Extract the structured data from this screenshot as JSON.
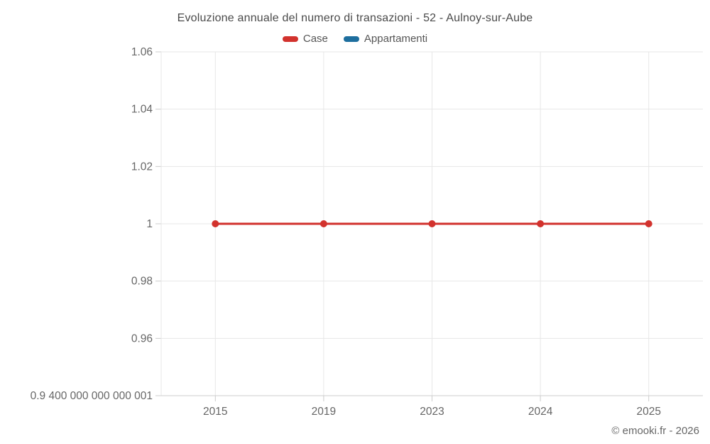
{
  "chart_data": {
    "type": "line",
    "title": "Evoluzione annuale del numero di transazioni - 52 - Aulnoy-sur-Aube",
    "categories": [
      "2015",
      "2019",
      "2023",
      "2024",
      "2025"
    ],
    "series": [
      {
        "name": "Case",
        "color": "#d2322d",
        "values": [
          1,
          1,
          1,
          1,
          1
        ]
      },
      {
        "name": "Appartamenti",
        "color": "#1d6e9e",
        "values": []
      }
    ],
    "y_axis": {
      "min": 0.9400000000000001,
      "max": 1.06,
      "ticks": [
        {
          "value": 1.06,
          "label": "1.06"
        },
        {
          "value": 1.04,
          "label": "1.04"
        },
        {
          "value": 1.02,
          "label": "1.02"
        },
        {
          "value": 1,
          "label": "1"
        },
        {
          "value": 0.98,
          "label": "0.98"
        },
        {
          "value": 0.96,
          "label": "0.96"
        },
        {
          "value": 0.9400000000000001,
          "label": "0.9 400 000 000 000 001"
        }
      ]
    },
    "grid": true,
    "legend_position": "top",
    "colors": {
      "gridline": "#e7e7e7",
      "axis_line": "#cccccc",
      "tick": "#cccccc",
      "axis_label": "#666666"
    }
  },
  "footer": {
    "copyright": "© emooki.fr - 2026"
  }
}
